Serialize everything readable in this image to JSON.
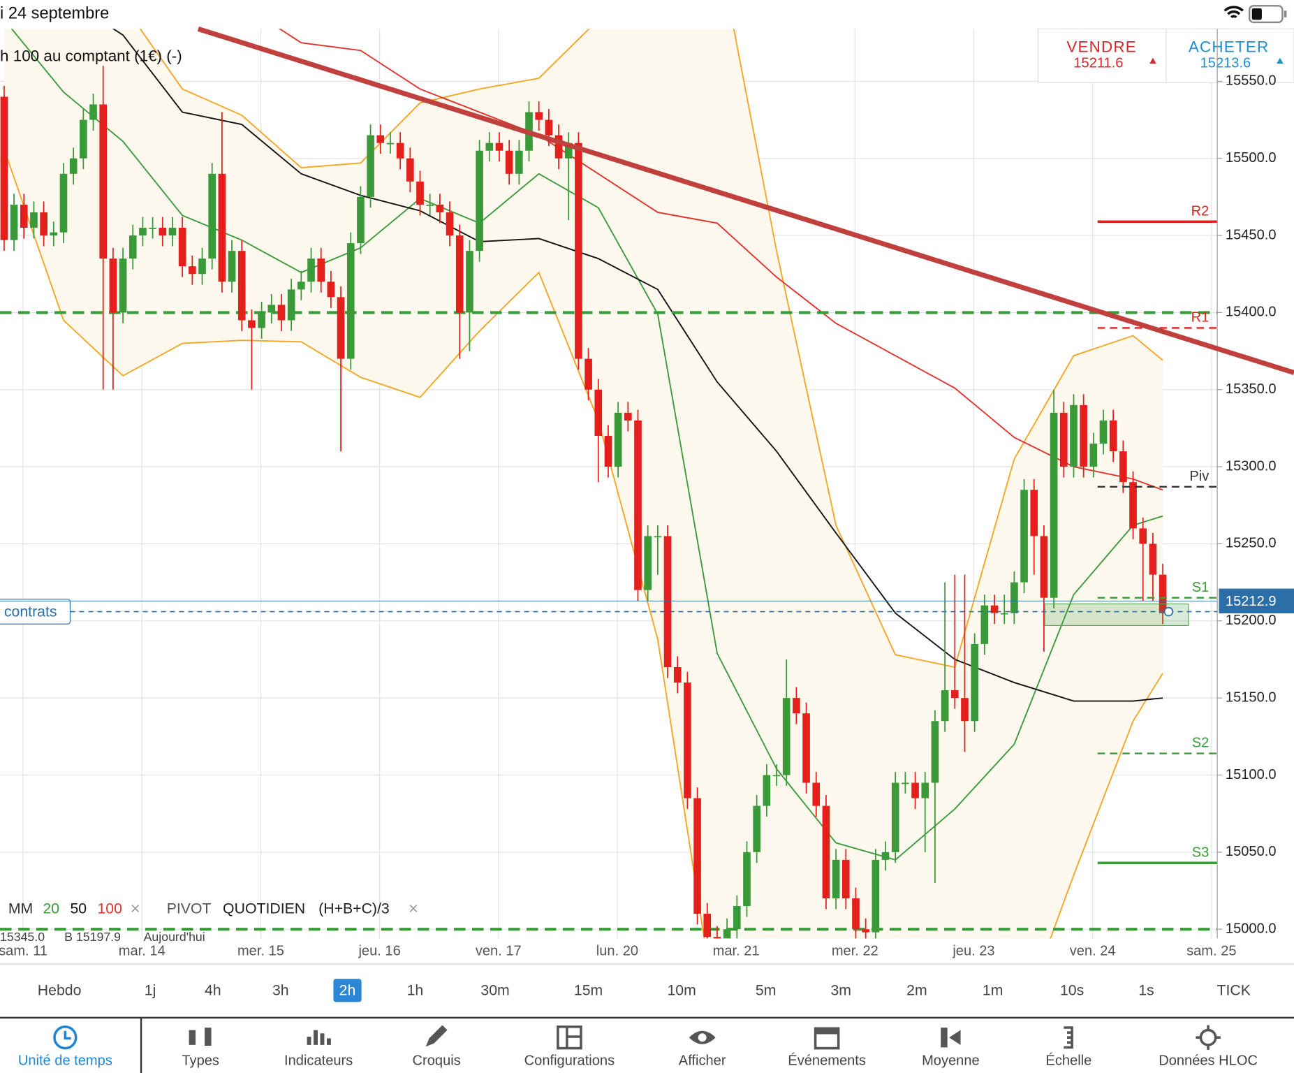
{
  "status": {
    "date": "i 24 septembre"
  },
  "instrument": "h 100 au comptant (1€) (-)",
  "sell": {
    "label": "VENDRE",
    "price": "15211.6"
  },
  "buy": {
    "label": "ACHETER",
    "price": "15213.6"
  },
  "legend": {
    "ma_label": "MM",
    "pivot_label": "PIVOT",
    "pivot_mode": "QUOTIDIEN",
    "pivot_formula": "(H+B+C)/3",
    "close": "×"
  },
  "info_line": [
    "15345.0",
    "B 15197.9",
    "Aujourd'hui"
  ],
  "position_label": "contrats",
  "timeframes": [
    "Hebdo",
    "1j",
    "4h",
    "3h",
    "2h",
    "1h",
    "30m",
    "15m",
    "10m",
    "5m",
    "3m",
    "2m",
    "1m",
    "10s",
    "1s",
    "TICK"
  ],
  "selected_timeframe": 4,
  "tabs": [
    "Unité de temps",
    "Types",
    "Indicateurs",
    "Croquis",
    "Configurations",
    "Afficher",
    "Événements",
    "Moyenne",
    "Échelle",
    "Données HLOC"
  ],
  "active_tab": 0,
  "chart_data": {
    "type": "candlestick",
    "dates": [
      "sam. 11",
      "mar. 14",
      "mer. 15",
      "jeu. 16",
      "ven. 17",
      "lun. 20",
      "mar. 21",
      "mer. 22",
      "jeu. 23",
      "ven. 24",
      "sam. 25"
    ],
    "ylim": [
      14994,
      15584
    ],
    "yticks": [
      {
        "value": 15000,
        "label": "15000.0"
      },
      {
        "value": 15050,
        "label": "15050.0"
      },
      {
        "value": 15100,
        "label": "15100.0"
      },
      {
        "value": 15150,
        "label": "15150.0"
      },
      {
        "value": 15200,
        "label": "15200.0"
      },
      {
        "value": 15250,
        "label": "15250.0"
      },
      {
        "value": 15300,
        "label": "15300.0"
      },
      {
        "value": 15350,
        "label": "15350.0"
      },
      {
        "value": 15400,
        "label": "15400.0"
      },
      {
        "value": 15450,
        "label": "15450.0"
      },
      {
        "value": 15500,
        "label": "15500.0"
      },
      {
        "value": 15550,
        "label": "15550.0"
      }
    ],
    "grid": true,
    "up_color": "#3a9a3a",
    "down_color": "#e3201b",
    "candles": [
      [
        15540,
        15547,
        15440,
        15447
      ],
      [
        15447,
        15477,
        15440,
        15470
      ],
      [
        15470,
        15477,
        15448,
        15455
      ],
      [
        15455,
        15472,
        15448,
        15465
      ],
      [
        15465,
        15472,
        15443,
        15450
      ],
      [
        15450,
        15459,
        15443,
        15452
      ],
      [
        15452,
        15497,
        15445,
        15490
      ],
      [
        15490,
        15507,
        15483,
        15500
      ],
      [
        15500,
        15532,
        15493,
        15525
      ],
      [
        15525,
        15542,
        15518,
        15535
      ],
      [
        15535,
        15560,
        15350,
        15435
      ],
      [
        15435,
        15442,
        15350,
        15400
      ],
      [
        15400,
        15442,
        15393,
        15435
      ],
      [
        15435,
        15457,
        15428,
        15450
      ],
      [
        15450,
        15462,
        15443,
        15455
      ],
      [
        15455,
        15462,
        15448,
        15455
      ],
      [
        15455,
        15462,
        15443,
        15450
      ],
      [
        15450,
        15462,
        15443,
        15455
      ],
      [
        15455,
        15462,
        15423,
        15430
      ],
      [
        15430,
        15437,
        15418,
        15425
      ],
      [
        15425,
        15442,
        15418,
        15435
      ],
      [
        15435,
        15497,
        15428,
        15490
      ],
      [
        15490,
        15530,
        15413,
        15420
      ],
      [
        15420,
        15447,
        15413,
        15440
      ],
      [
        15440,
        15447,
        15388,
        15395
      ],
      [
        15395,
        15402,
        15350,
        15390
      ],
      [
        15390,
        15407,
        15383,
        15400
      ],
      [
        15400,
        15412,
        15393,
        15405
      ],
      [
        15405,
        15412,
        15388,
        15395
      ],
      [
        15395,
        15422,
        15388,
        15415
      ],
      [
        15415,
        15427,
        15408,
        15420
      ],
      [
        15420,
        15442,
        15413,
        15435
      ],
      [
        15435,
        15442,
        15413,
        15420
      ],
      [
        15420,
        15427,
        15403,
        15410
      ],
      [
        15410,
        15417,
        15310,
        15370
      ],
      [
        15370,
        15452,
        15363,
        15445
      ],
      [
        15445,
        15482,
        15438,
        15475
      ],
      [
        15475,
        15522,
        15468,
        15515
      ],
      [
        15515,
        15522,
        15503,
        15510
      ],
      [
        15510,
        15517,
        15503,
        15510
      ],
      [
        15510,
        15517,
        15493,
        15500
      ],
      [
        15500,
        15507,
        15478,
        15485
      ],
      [
        15485,
        15492,
        15463,
        15470
      ],
      [
        15470,
        15477,
        15463,
        15470
      ],
      [
        15470,
        15477,
        15458,
        15465
      ],
      [
        15465,
        15472,
        15443,
        15450
      ],
      [
        15450,
        15457,
        15370,
        15400
      ],
      [
        15400,
        15447,
        15375,
        15440
      ],
      [
        15440,
        15512,
        15433,
        15505
      ],
      [
        15505,
        15517,
        15498,
        15510
      ],
      [
        15510,
        15517,
        15498,
        15505
      ],
      [
        15505,
        15512,
        15483,
        15490
      ],
      [
        15490,
        15512,
        15483,
        15505
      ],
      [
        15505,
        15537,
        15498,
        15530
      ],
      [
        15530,
        15537,
        15518,
        15525
      ],
      [
        15525,
        15532,
        15508,
        15515
      ],
      [
        15515,
        15522,
        15493,
        15500
      ],
      [
        15500,
        15517,
        15460,
        15510
      ],
      [
        15510,
        15517,
        15363,
        15370
      ],
      [
        15370,
        15377,
        15343,
        15350
      ],
      [
        15350,
        15357,
        15290,
        15320
      ],
      [
        15320,
        15327,
        15293,
        15300
      ],
      [
        15300,
        15342,
        15293,
        15335
      ],
      [
        15335,
        15342,
        15323,
        15330
      ],
      [
        15330,
        15337,
        15213,
        15220
      ],
      [
        15220,
        15262,
        15213,
        15255
      ],
      [
        15255,
        15262,
        15230,
        15255
      ],
      [
        15255,
        15262,
        15163,
        15170
      ],
      [
        15170,
        15177,
        15153,
        15160
      ],
      [
        15160,
        15167,
        15078,
        15085
      ],
      [
        15085,
        15092,
        15003,
        15010
      ],
      [
        15010,
        15017,
        14988,
        14995
      ],
      [
        14995,
        15002,
        14983,
        14990
      ],
      [
        14990,
        15007,
        14983,
        15000
      ],
      [
        15000,
        15022,
        14993,
        15015
      ],
      [
        15015,
        15057,
        15008,
        15050
      ],
      [
        15050,
        15087,
        15043,
        15080
      ],
      [
        15080,
        15107,
        15073,
        15100
      ],
      [
        15100,
        15107,
        15093,
        15100
      ],
      [
        15100,
        15175,
        15093,
        15150
      ],
      [
        15150,
        15157,
        15133,
        15140
      ],
      [
        15140,
        15147,
        15088,
        15095
      ],
      [
        15095,
        15102,
        15073,
        15080
      ],
      [
        15080,
        15087,
        15013,
        15020
      ],
      [
        15020,
        15052,
        15013,
        15045
      ],
      [
        15045,
        15052,
        15013,
        15020
      ],
      [
        15020,
        15027,
        14993,
        15000
      ],
      [
        15000,
        15007,
        14991,
        14998
      ],
      [
        14998,
        15052,
        14991,
        15045
      ],
      [
        15045,
        15057,
        15038,
        15050
      ],
      [
        15050,
        15102,
        15043,
        15095
      ],
      [
        15095,
        15102,
        15088,
        15095
      ],
      [
        15095,
        15102,
        15078,
        15085
      ],
      [
        15085,
        15102,
        15050,
        15095
      ],
      [
        15095,
        15142,
        15030,
        15135
      ],
      [
        15135,
        15225,
        15128,
        15155
      ],
      [
        15155,
        15230,
        15143,
        15150
      ],
      [
        15150,
        15230,
        15115,
        15135
      ],
      [
        15135,
        15192,
        15128,
        15185
      ],
      [
        15185,
        15217,
        15178,
        15210
      ],
      [
        15210,
        15217,
        15198,
        15205
      ],
      [
        15205,
        15217,
        15198,
        15205
      ],
      [
        15205,
        15232,
        15198,
        15225
      ],
      [
        15225,
        15292,
        15218,
        15285
      ],
      [
        15285,
        15292,
        15230,
        15255
      ],
      [
        15255,
        15262,
        15180,
        15215
      ],
      [
        15215,
        15350,
        15208,
        15335
      ],
      [
        15335,
        15342,
        15293,
        15300
      ],
      [
        15300,
        15347,
        15293,
        15340
      ],
      [
        15340,
        15347,
        15293,
        15300
      ],
      [
        15300,
        15322,
        15293,
        15315
      ],
      [
        15315,
        15337,
        15308,
        15330
      ],
      [
        15330,
        15337,
        15303,
        15310
      ],
      [
        15310,
        15317,
        15283,
        15290
      ],
      [
        15290,
        15297,
        15253,
        15260
      ],
      [
        15260,
        15267,
        15213,
        15250
      ],
      [
        15250,
        15257,
        15213,
        15230
      ],
      [
        15230,
        15237,
        15198,
        15205
      ]
    ],
    "line_x": [
      0,
      6,
      12,
      18,
      24,
      30,
      36,
      42,
      48,
      54,
      60,
      66,
      72,
      78,
      84,
      90,
      96,
      102,
      108,
      114,
      117
    ],
    "bands": {
      "color": "#f5a623",
      "fill": "#fdf8ee",
      "upper": [
        15640,
        15620,
        15600,
        15545,
        15528,
        15494,
        15497,
        15536,
        15545,
        15552,
        15590,
        15640,
        15640,
        15440,
        15262,
        15178,
        15170,
        15305,
        15372,
        15385,
        15369
      ],
      "lower": [
        15506,
        15395,
        15359,
        15380,
        15382,
        15381,
        15358,
        15345,
        15388,
        15426,
        15330,
        15188,
        14940,
        14900,
        14880,
        14890,
        14900,
        14930,
        15035,
        15135,
        15166
      ]
    },
    "moving_averages": [
      {
        "period": 20,
        "color": "#3d9a3d",
        "values": [
          15590,
          15543,
          15511,
          15463,
          15447,
          15426,
          15442,
          15474,
          15458,
          15490,
          15468,
          15399,
          15179,
          15104,
          15056,
          15045,
          15078,
          15120,
          15217,
          15262,
          15268
        ]
      },
      {
        "period": 50,
        "color": "#111111",
        "values": [
          15620,
          15605,
          15580,
          15530,
          15522,
          15490,
          15476,
          15466,
          15446,
          15448,
          15435,
          15415,
          15355,
          15310,
          15257,
          15205,
          15175,
          15160,
          15148,
          15148,
          15150
        ]
      },
      {
        "period": 100,
        "color": "#e3322b",
        "values": [
          15680,
          15670,
          15660,
          15640,
          15600,
          15575,
          15570,
          15545,
          15530,
          15515,
          15490,
          15465,
          15458,
          15423,
          15393,
          15372,
          15351,
          15319,
          15300,
          15292,
          15285
        ]
      }
    ],
    "trendline": {
      "color": "#c0403d",
      "points": [
        [
          19.6,
          15584
        ],
        [
          130.25,
          15361
        ]
      ]
    },
    "levels": {
      "color": "#3a9a3a",
      "values": [
        15400,
        15000
      ]
    },
    "pivots": [
      {
        "label": "R2",
        "value": 15459,
        "color": "#e3201b",
        "dash": false
      },
      {
        "label": "R1",
        "value": 15390,
        "color": "#e3201b",
        "dash": true
      },
      {
        "label": "Piv",
        "value": 15287,
        "color": "#333333",
        "dash": true
      },
      {
        "label": "S1",
        "value": 15215,
        "color": "#3a9a3a",
        "dash": true
      },
      {
        "label": "S2",
        "value": 15114,
        "color": "#3a9a3a",
        "dash": true
      },
      {
        "label": "S3",
        "value": 15043,
        "color": "#3a9a3a",
        "dash": false
      }
    ],
    "last_price": 15212.9,
    "position_price": 15206,
    "zone": [
      15197,
      15211
    ]
  }
}
